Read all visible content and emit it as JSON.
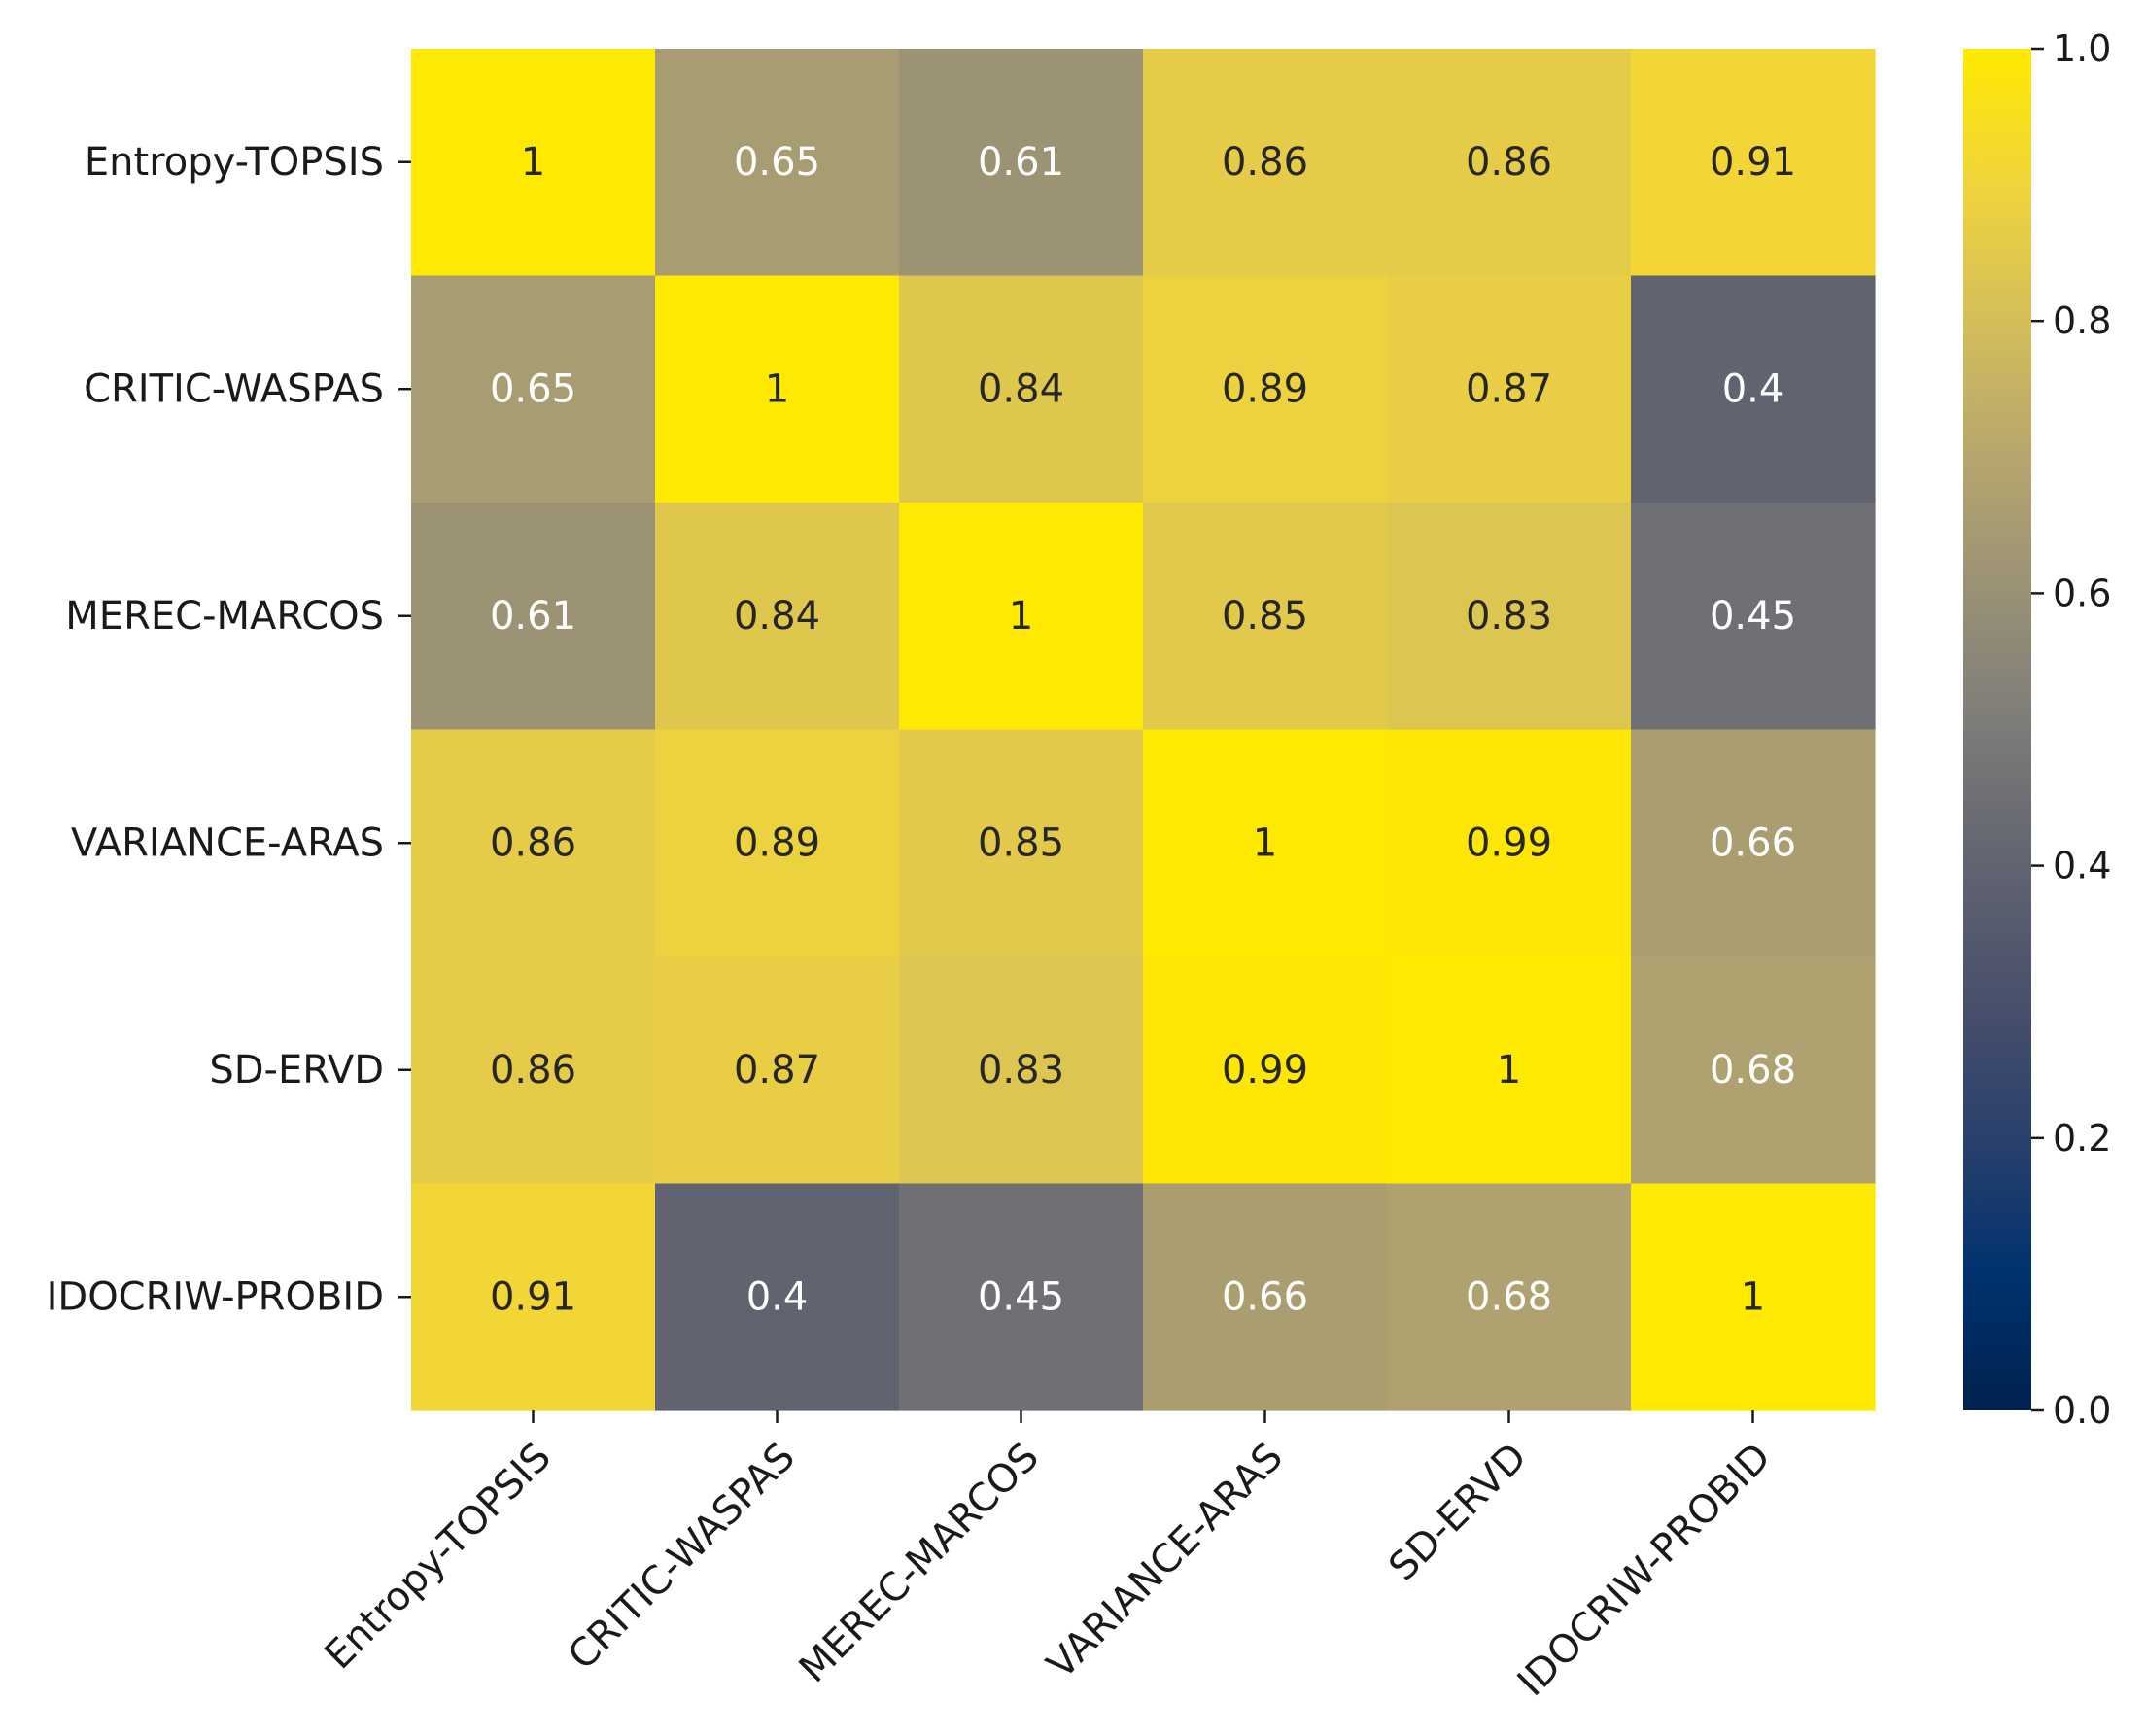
{
  "chart_data": {
    "type": "heatmap",
    "title": "",
    "xlabel": "",
    "ylabel": "",
    "row_labels": [
      "Entropy-TOPSIS",
      "CRITIC-WASPAS",
      "MEREC-MARCOS",
      "VARIANCE-ARAS",
      "SD-ERVD",
      "IDOCRIW-PROBID"
    ],
    "col_labels": [
      "Entropy-TOPSIS",
      "CRITIC-WASPAS",
      "MEREC-MARCOS",
      "VARIANCE-ARAS",
      "SD-ERVD",
      "IDOCRIW-PROBID"
    ],
    "values": [
      [
        1,
        0.65,
        0.61,
        0.86,
        0.86,
        0.91
      ],
      [
        0.65,
        1,
        0.84,
        0.89,
        0.87,
        0.4
      ],
      [
        0.61,
        0.84,
        1,
        0.85,
        0.83,
        0.45
      ],
      [
        0.86,
        0.89,
        0.85,
        1,
        0.99,
        0.66
      ],
      [
        0.86,
        0.87,
        0.83,
        0.99,
        1,
        0.68
      ],
      [
        0.91,
        0.4,
        0.45,
        0.66,
        0.68,
        1
      ]
    ],
    "value_labels": [
      [
        "1",
        "0.65",
        "0.61",
        "0.86",
        "0.86",
        "0.91"
      ],
      [
        "0.65",
        "1",
        "0.84",
        "0.89",
        "0.87",
        "0.4"
      ],
      [
        "0.61",
        "0.84",
        "1",
        "0.85",
        "0.83",
        "0.45"
      ],
      [
        "0.86",
        "0.89",
        "0.85",
        "1",
        "0.99",
        "0.66"
      ],
      [
        "0.86",
        "0.87",
        "0.83",
        "0.99",
        "1",
        "0.68"
      ],
      [
        "0.91",
        "0.4",
        "0.45",
        "0.66",
        "0.68",
        "1"
      ]
    ],
    "colormap": "cividis",
    "colorbar": {
      "range": [
        0.0,
        1.0
      ],
      "ticks": [
        0.0,
        0.2,
        0.4,
        0.6,
        0.8,
        1.0
      ],
      "tick_labels": [
        "0.0",
        "0.2",
        "0.4",
        "0.6",
        "0.8",
        "1.0"
      ]
    }
  },
  "colors": {
    "text_dark": "#262626",
    "text_light": "#ffffff",
    "axis": "#1a1a1a"
  }
}
